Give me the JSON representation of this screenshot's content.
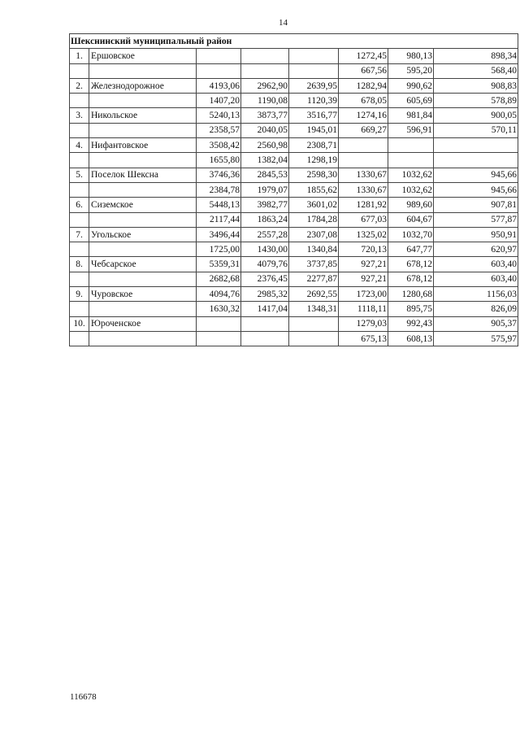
{
  "page_number": "14",
  "footer_code": "116678",
  "section_title": "Шекснинский муниципальный район",
  "rows": [
    {
      "num": "1.",
      "name": "Ершовское",
      "v": [
        "",
        "",
        "",
        "1272,45",
        "980,13",
        "898,34"
      ]
    },
    {
      "num": "",
      "name": "",
      "v": [
        "",
        "",
        "",
        "667,56",
        "595,20",
        "568,40"
      ]
    },
    {
      "num": "2.",
      "name": "Железнодорожное",
      "v": [
        "4193,06",
        "2962,90",
        "2639,95",
        "1282,94",
        "990,62",
        "908,83"
      ]
    },
    {
      "num": "",
      "name": "",
      "v": [
        "1407,20",
        "1190,08",
        "1120,39",
        "678,05",
        "605,69",
        "578,89"
      ]
    },
    {
      "num": "3.",
      "name": "Никольское",
      "v": [
        "5240,13",
        "3873,77",
        "3516,77",
        "1274,16",
        "981,84",
        "900,05"
      ]
    },
    {
      "num": "",
      "name": "",
      "v": [
        "2358,57",
        "2040,05",
        "1945,01",
        "669,27",
        "596,91",
        "570,11"
      ]
    },
    {
      "num": "4.",
      "name": "Нифантовское",
      "v": [
        "3508,42",
        "2560,98",
        "2308,71",
        "",
        "",
        ""
      ]
    },
    {
      "num": "",
      "name": "",
      "v": [
        "1655,80",
        "1382,04",
        "1298,19",
        "",
        "",
        ""
      ]
    },
    {
      "num": "5.",
      "name": "Поселок Шексна",
      "v": [
        "3746,36",
        "2845,53",
        "2598,30",
        "1330,67",
        "1032,62",
        "945,66"
      ]
    },
    {
      "num": "",
      "name": "",
      "v": [
        "2384,78",
        "1979,07",
        "1855,62",
        "1330,67",
        "1032,62",
        "945,66"
      ]
    },
    {
      "num": "6.",
      "name": "Сиземское",
      "v": [
        "5448,13",
        "3982,77",
        "3601,02",
        "1281,92",
        "989,60",
        "907,81"
      ]
    },
    {
      "num": "",
      "name": "",
      "v": [
        "2117,44",
        "1863,24",
        "1784,28",
        "677,03",
        "604,67",
        "577,87"
      ]
    },
    {
      "num": "7.",
      "name": "Угольское",
      "v": [
        "3496,44",
        "2557,28",
        "2307,08",
        "1325,02",
        "1032,70",
        "950,91"
      ]
    },
    {
      "num": "",
      "name": "",
      "v": [
        "1725,00",
        "1430,00",
        "1340,84",
        "720,13",
        "647,77",
        "620,97"
      ]
    },
    {
      "num": "8.",
      "name": "Чебсарское",
      "v": [
        "5359,31",
        "4079,76",
        "3737,85",
        "927,21",
        "678,12",
        "603,40"
      ]
    },
    {
      "num": "",
      "name": "",
      "v": [
        "2682,68",
        "2376,45",
        "2277,87",
        "927,21",
        "678,12",
        "603,40"
      ]
    },
    {
      "num": "9.",
      "name": "Чуровское",
      "v": [
        "4094,76",
        "2985,32",
        "2692,55",
        "1723,00",
        "1280,68",
        "1156,03"
      ]
    },
    {
      "num": "",
      "name": "",
      "v": [
        "1630,32",
        "1417,04",
        "1348,31",
        "1118,11",
        "895,75",
        "826,09"
      ]
    },
    {
      "num": "10.",
      "name": "Юроченское",
      "v": [
        "",
        "",
        "",
        "1279,03",
        "992,43",
        "905,37"
      ]
    },
    {
      "num": "",
      "name": "",
      "v": [
        "",
        "",
        "",
        "675,13",
        "608,13",
        "575,97"
      ]
    }
  ]
}
